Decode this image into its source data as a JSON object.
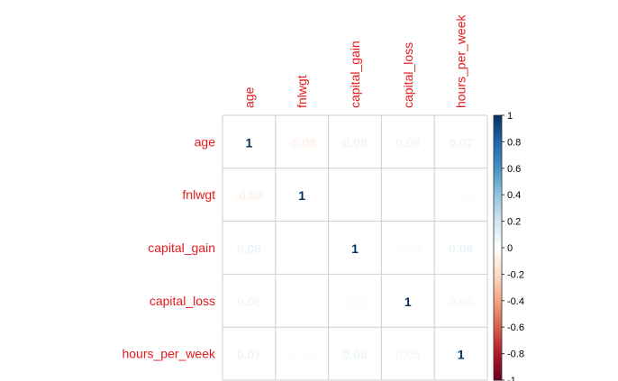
{
  "chart_data": {
    "type": "heatmap",
    "variables": [
      "age",
      "fnlwgt",
      "capital_gain",
      "capital_loss",
      "hours_per_week"
    ],
    "matrix": [
      [
        1,
        -0.08,
        0.08,
        0.06,
        0.07
      ],
      [
        -0.08,
        1,
        0.0,
        -0.01,
        -0.02
      ],
      [
        0.08,
        0.0,
        1,
        -0.03,
        0.08
      ],
      [
        0.06,
        -0.01,
        -0.03,
        1,
        0.05
      ],
      [
        0.07,
        -0.02,
        0.08,
        0.05,
        1
      ]
    ],
    "cell_labels": [
      [
        "1",
        "-0.08",
        "0.08",
        "0.06",
        "0.07"
      ],
      [
        "-0.08",
        "1",
        "",
        "-0.01",
        "-0.02"
      ],
      [
        "0.08",
        "",
        "1",
        "-0.03",
        "0.08"
      ],
      [
        "0.06",
        "-0.01",
        "-0.03",
        "1",
        "0.05"
      ],
      [
        "0.07",
        "-0.02",
        "0.08",
        "0.05",
        "1"
      ]
    ],
    "colorbar": {
      "range": [
        -1,
        1
      ],
      "ticks": [
        "1",
        "0.8",
        "0.6",
        "0.4",
        "0.2",
        "0",
        "-0.2",
        "-0.4",
        "-0.6",
        "-0.8",
        "-1"
      ],
      "colors": [
        "#67001F",
        "#B2182B",
        "#D6604D",
        "#F4A582",
        "#FDDBC7",
        "#FFFFFF",
        "#D1E5F0",
        "#92C5DE",
        "#4393C3",
        "#2166AC",
        "#053061"
      ]
    },
    "label_color": "#E41A1C",
    "grid": true,
    "legend_placement": "right"
  }
}
